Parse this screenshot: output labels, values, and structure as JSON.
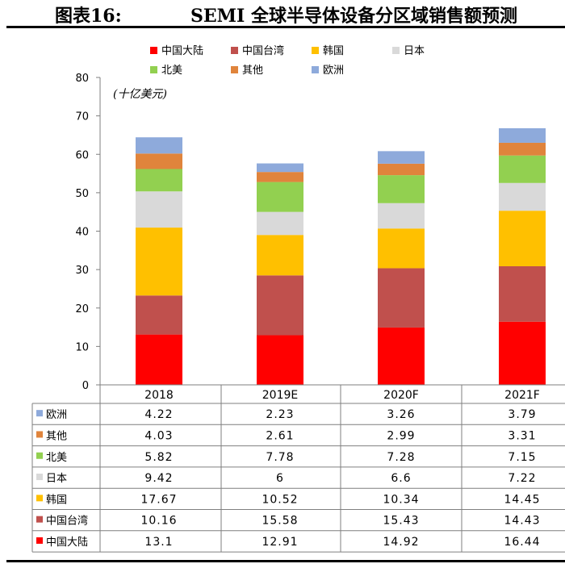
{
  "figure": {
    "label": "图表16:",
    "title": "SEMI 全球半导体设备分区域销售额预测"
  },
  "chart_data": {
    "type": "bar",
    "stacked": true,
    "unit_note": "(十亿美元)",
    "categories": [
      "2018",
      "2019E",
      "2020F",
      "2021F"
    ],
    "ylim": [
      0,
      80
    ],
    "yticks": [
      "0",
      "10",
      "20",
      "30",
      "40",
      "50",
      "60",
      "70",
      "80"
    ],
    "legend_position": "top",
    "series": [
      {
        "name": "中国大陆",
        "color": "#ff0000",
        "values": [
          13.1,
          12.91,
          14.92,
          16.44
        ],
        "labels": [
          "13.1",
          "12.91",
          "14.92",
          "16.44"
        ]
      },
      {
        "name": "中国台湾",
        "color": "#c0504d",
        "values": [
          10.16,
          15.58,
          15.43,
          14.43
        ],
        "labels": [
          "10.16",
          "15.58",
          "15.43",
          "14.43"
        ]
      },
      {
        "name": "韩国",
        "color": "#ffc000",
        "values": [
          17.67,
          10.52,
          10.34,
          14.45
        ],
        "labels": [
          "17.67",
          "10.52",
          "10.34",
          "14.45"
        ]
      },
      {
        "name": "日本",
        "color": "#d9d9d9",
        "values": [
          9.42,
          6,
          6.6,
          7.22
        ],
        "labels": [
          "9.42",
          "6",
          "6.6",
          "7.22"
        ]
      },
      {
        "name": "北美",
        "color": "#92d050",
        "values": [
          5.82,
          7.78,
          7.28,
          7.15
        ],
        "labels": [
          "5.82",
          "7.78",
          "7.28",
          "7.15"
        ]
      },
      {
        "name": "其他",
        "color": "#e0843c",
        "values": [
          4.03,
          2.61,
          2.99,
          3.31
        ],
        "labels": [
          "4.03",
          "2.61",
          "2.99",
          "3.31"
        ]
      },
      {
        "name": "欧洲",
        "color": "#8eaadb",
        "values": [
          4.22,
          2.23,
          3.26,
          3.79
        ],
        "labels": [
          "4.22",
          "2.23",
          "3.26",
          "3.79"
        ]
      }
    ],
    "legend_order": [
      "中国大陆",
      "中国台湾",
      "韩国",
      "日本",
      "北美",
      "其他",
      "欧洲"
    ],
    "table_row_order": [
      "欧洲",
      "其他",
      "北美",
      "日本",
      "韩国",
      "中国台湾",
      "中国大陆"
    ]
  }
}
